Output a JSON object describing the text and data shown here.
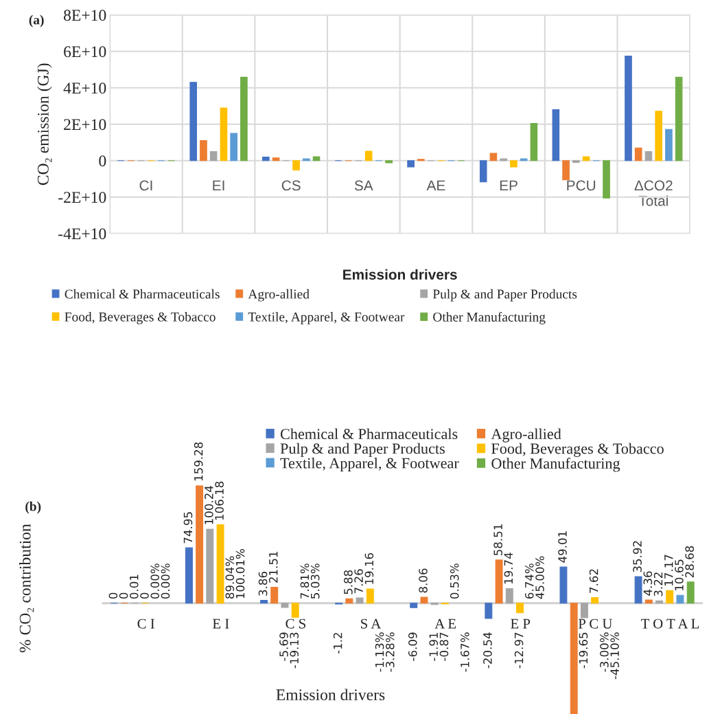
{
  "chart_data": [
    {
      "type": "bar",
      "ylabel": "CO₂ emission (GJ)",
      "xlabel": "Emission drivers",
      "annotations": [
        "(a)"
      ],
      "categories": [
        "CI",
        "EI",
        "CS",
        "SA",
        "AE",
        "EP",
        "PCU",
        "ΔCO2\nTotal"
      ],
      "series": [
        {
          "name": "Chemical & Pharmaceuticals",
          "color": "#4472c4",
          "values": [
            0,
            43000000000.0,
            2000000000.0,
            0,
            -3500000000.0,
            -11700000000.0,
            28000000000.0,
            57500000000.0
          ]
        },
        {
          "name": "Agro-allied",
          "color": "#ed7d31",
          "values": [
            0,
            11000000000.0,
            1500000000.0,
            0,
            700000000.0,
            4000000000.0,
            -10500000000.0,
            7000000000.0
          ]
        },
        {
          "name": "Pulp & and Paper Products",
          "color": "#a5a5a5",
          "values": [
            0,
            5000000000.0,
            0,
            0,
            0,
            1000000000.0,
            -1000000000.0,
            5000000000.0
          ]
        },
        {
          "name": "Food, Beverages & Tobacco",
          "color": "#ffc000",
          "values": [
            0,
            29000000000.0,
            -5200000000.0,
            5200000000.0,
            0,
            -3500000000.0,
            2200000000.0,
            27200000000.0
          ]
        },
        {
          "name": "Textile, Apparel, & Footwear",
          "color": "#5b9bd5",
          "values": [
            0,
            15000000000.0,
            1000000000.0,
            0,
            0,
            1000000000.0,
            0,
            17200000000.0
          ]
        },
        {
          "name": "Other Manufacturing",
          "color": "#70ad47",
          "values": [
            0,
            45800000000.0,
            2200000000.0,
            -1200000000.0,
            0,
            20500000000.0,
            -20500000000.0,
            45800000000.0
          ]
        }
      ],
      "ylim": [
        -40000000000.0,
        80000000000.0
      ],
      "yticks": [
        {
          "value": -40000000000.0,
          "label": "-4E+10"
        },
        {
          "value": -20000000000.0,
          "label": "-2E+10"
        },
        0,
        {
          "value": 20000000000.0,
          "label": "2E+10"
        },
        {
          "value": 40000000000.0,
          "label": "4E+10"
        },
        {
          "value": 60000000000.0,
          "label": "6E+10"
        },
        {
          "value": 80000000000.0,
          "label": "8E+10"
        }
      ],
      "grid": true,
      "legend": "bottom"
    },
    {
      "type": "bar",
      "ylabel": "% CO₂ contribution",
      "xlabel": "Emission drivers",
      "annotations": [
        "(b)"
      ],
      "categories": [
        "C I",
        "E I",
        "C S",
        "S A",
        "A E",
        "E P",
        "P C U",
        "T O T A L"
      ],
      "series": [
        {
          "name": "Chemical & Pharmaceuticals",
          "color": "#4472c4",
          "values": [
            0,
            74.95,
            3.86,
            -1.2,
            -6.09,
            -20.54,
            49.01,
            35.92
          ],
          "value_labels": [
            "0",
            "74.95",
            "3.86",
            "-1.2",
            "-6.09",
            "-20.54",
            "49.01",
            "35.92"
          ]
        },
        {
          "name": "Agro-allied",
          "color": "#ed7d31",
          "values": [
            0,
            159.28,
            21.51,
            5.88,
            8.06,
            58.51,
            -150,
            4.36
          ],
          "value_labels": [
            "0",
            "159.28",
            "21.51",
            "5.88",
            "8.06",
            "58.51",
            null,
            "4.36"
          ]
        },
        {
          "name": "Pulp & and Paper Products",
          "color": "#a5a5a5",
          "values": [
            0.01,
            100.24,
            -5.69,
            7.26,
            -1.91,
            19.74,
            -19.65,
            3.22
          ],
          "value_labels": [
            "0.01",
            "100.24",
            "-5.69",
            "7.26",
            "-1.91",
            "19.74",
            "-19.65",
            "3.22"
          ]
        },
        {
          "name": "Food, Beverages & Tobacco",
          "color": "#ffc000",
          "values": [
            0,
            106.18,
            -19.13,
            19.16,
            -0.87,
            -12.97,
            7.62,
            17.17
          ],
          "value_labels": [
            "0",
            "106.18",
            "-19.13",
            "19.16",
            "-0.87",
            "-12.97",
            "7.62",
            "17.17"
          ]
        },
        {
          "name": "Textile, Apparel, & Footwear",
          "color": "#5b9bd5",
          "values": [
            null,
            null,
            null,
            null,
            null,
            null,
            null,
            10.65
          ],
          "value_labels": [
            "0.00%",
            "89.04%",
            "7.81%",
            "-1.13%",
            "0.53%",
            "6.74%",
            "-3.00%",
            "10.65"
          ]
        },
        {
          "name": "Other Manufacturing",
          "color": "#70ad47",
          "values": [
            null,
            null,
            null,
            null,
            null,
            null,
            null,
            28.68
          ],
          "value_labels": [
            "0.00%",
            "100.01%",
            "5.03%",
            "-3.28%",
            "-1.67%",
            "45.00%",
            "-45.10%",
            "28.68"
          ]
        }
      ],
      "ylim": [
        -150,
        159.28
      ],
      "tick_labels": "x",
      "grid": false,
      "legend": "top"
    }
  ]
}
